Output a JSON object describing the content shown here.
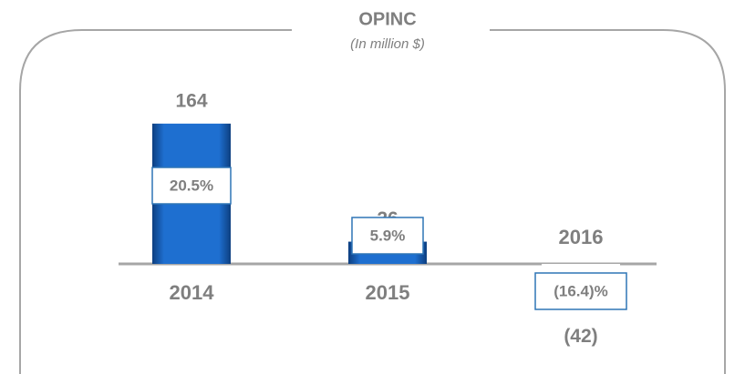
{
  "chart_data": {
    "type": "bar",
    "title": "OPINC",
    "subtitle": "(In million $)",
    "categories": [
      "2014",
      "2015",
      "2016"
    ],
    "values": [
      164,
      26,
      -42
    ],
    "value_labels": [
      "164",
      "26",
      "(42)"
    ],
    "margin_labels": [
      "20.5%",
      "5.9%",
      "(16.4)%"
    ],
    "colors": [
      "#1a5fb4",
      "#1a5fb4",
      "#ffffff"
    ],
    "ylim": [
      -100,
      220
    ]
  }
}
